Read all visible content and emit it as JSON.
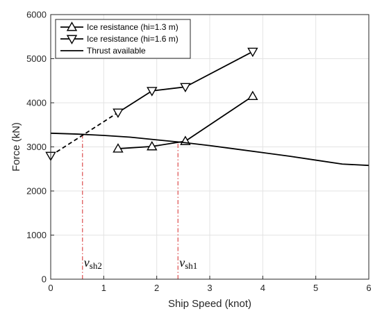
{
  "chart_data": {
    "type": "line",
    "xlabel": "Ship Speed (knot)",
    "ylabel": "Force (kN)",
    "xlim": [
      0,
      6
    ],
    "ylim": [
      0,
      6000
    ],
    "xticks": [
      "0",
      "1",
      "2",
      "3",
      "4",
      "5",
      "6"
    ],
    "yticks": [
      "0",
      "1000",
      "2000",
      "3000",
      "4000",
      "5000",
      "6000"
    ],
    "grid": true,
    "legend_position": "top-left",
    "series": [
      {
        "name": "Ice resistance (hi=1.3 m)",
        "marker": "triangle-up",
        "color": "#000000",
        "x": [
          1.27,
          1.91,
          2.54,
          3.81
        ],
        "y": [
          2960,
          3010,
          3130,
          4150
        ]
      },
      {
        "name": "Ice resistance (hi=1.6 m)",
        "marker": "triangle-down",
        "color": "#000000",
        "x": [
          1.27,
          1.91,
          2.54,
          3.81
        ],
        "y": [
          3780,
          4270,
          4360,
          5160
        ]
      },
      {
        "name": "Thrust available",
        "marker": "none",
        "color": "#000000",
        "x": [
          0,
          0.5,
          1,
          1.5,
          2,
          2.5,
          3,
          3.5,
          4,
          4.5,
          5,
          5.5,
          6
        ],
        "y": [
          3310,
          3290,
          3260,
          3220,
          3160,
          3100,
          3030,
          2950,
          2870,
          2790,
          2700,
          2610,
          2580
        ]
      }
    ],
    "extrapolation": {
      "series": "Ice resistance (hi=1.6 m)",
      "style": "dashed",
      "x": [
        0,
        1.27
      ],
      "y": [
        2800,
        3780
      ],
      "marker_x": 0,
      "marker_y": 2800
    },
    "annotations": [
      {
        "symbol": "v",
        "subscript": "sh2",
        "x": 0.6,
        "color": "#d62728"
      },
      {
        "symbol": "v",
        "subscript": "sh1",
        "x": 2.4,
        "color": "#d62728"
      }
    ]
  }
}
